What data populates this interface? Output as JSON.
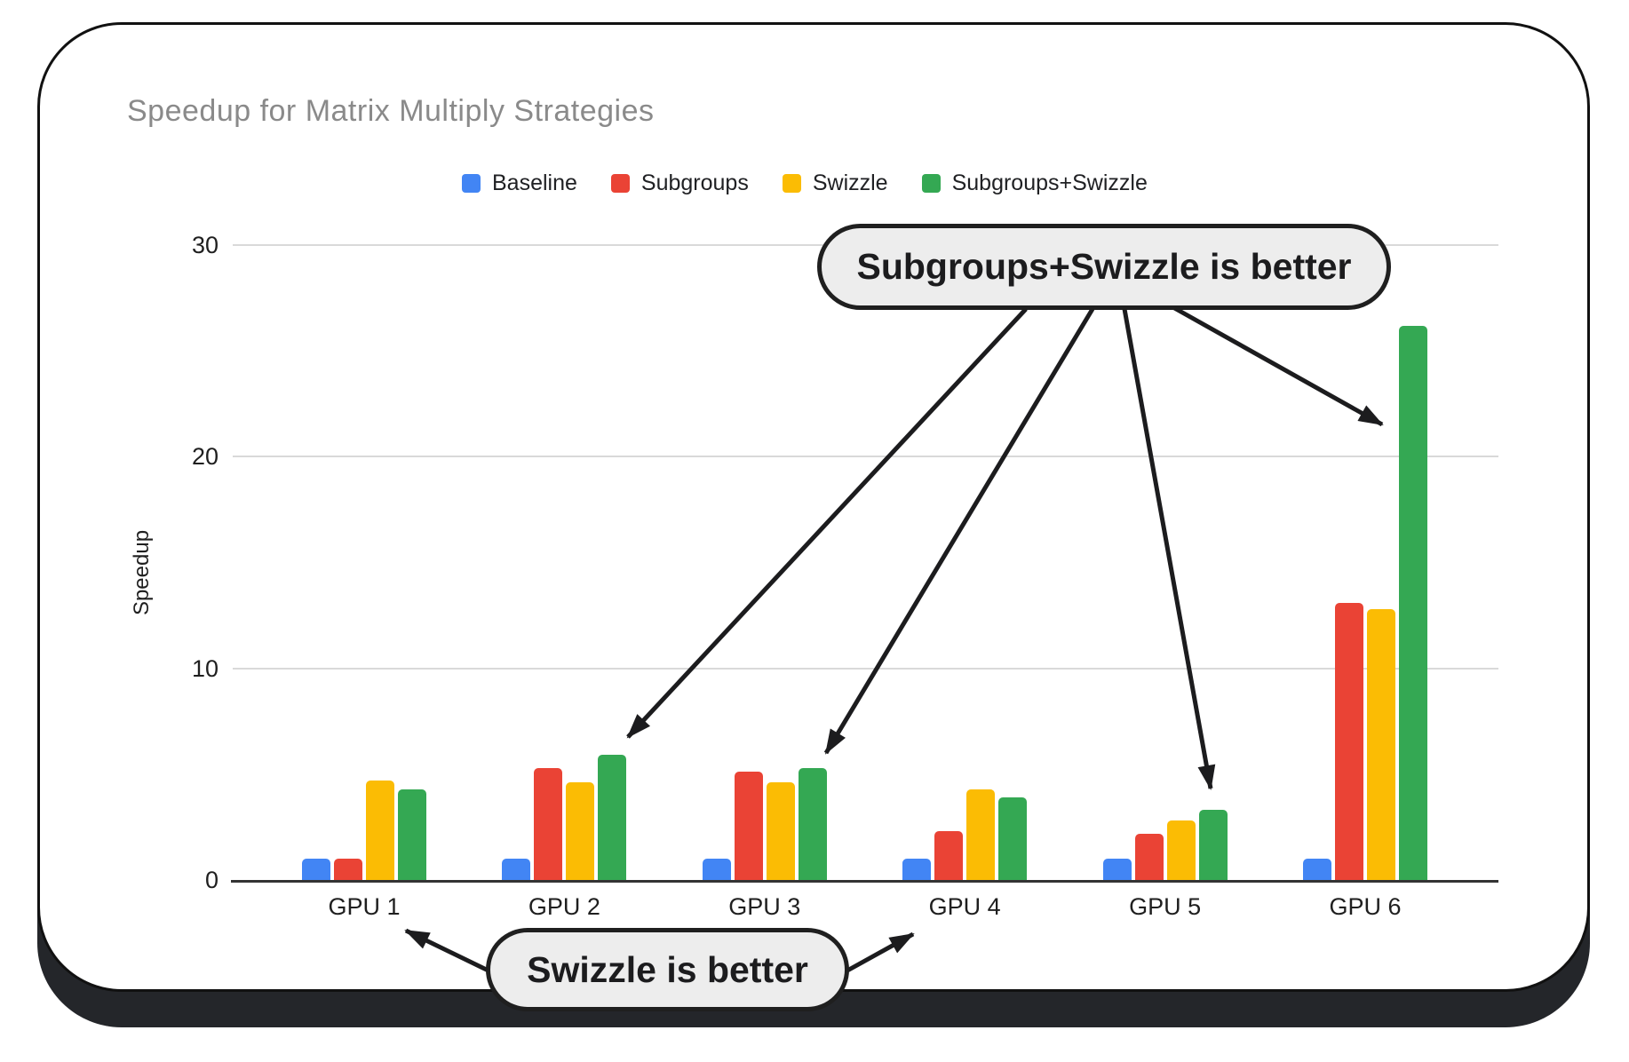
{
  "chart_data": {
    "type": "bar",
    "title": "Speedup for Matrix Multiply Strategies",
    "categories": [
      "GPU 1",
      "GPU 2",
      "GPU 3",
      "GPU 4",
      "GPU 5",
      "GPU 6"
    ],
    "series": [
      {
        "name": "Baseline",
        "color": "#4285F4",
        "values": [
          1.0,
          1.0,
          1.0,
          1.0,
          1.0,
          1.0
        ]
      },
      {
        "name": "Subgroups",
        "color": "#EA4335",
        "values": [
          1.0,
          5.3,
          5.1,
          2.3,
          2.2,
          13.1
        ]
      },
      {
        "name": "Swizzle",
        "color": "#FBBC04",
        "values": [
          4.7,
          4.6,
          4.6,
          4.3,
          2.8,
          12.8
        ]
      },
      {
        "name": "Subgroups+Swizzle",
        "color": "#34A853",
        "values": [
          4.3,
          5.9,
          5.3,
          3.9,
          3.3,
          26.2
        ]
      }
    ],
    "xlabel": "",
    "ylabel": "Speedup",
    "ylim": [
      0,
      30
    ],
    "yticks": [
      0,
      10,
      20,
      30
    ],
    "grid": true,
    "legend_position": "top"
  },
  "annotations": {
    "top": {
      "text": "Subgroups+Swizzle is better",
      "points_to": [
        "GPU 2",
        "GPU 3",
        "GPU 5",
        "GPU 6"
      ]
    },
    "bottom": {
      "text": "Swizzle is better",
      "points_to": [
        "GPU 1",
        "GPU 4"
      ]
    }
  },
  "colors": {
    "card_border": "#111111",
    "card_shadow": "#24262a",
    "bubble_fill": "#ededed",
    "bubble_border": "#1f1f1f",
    "gridline": "#d9d9d9",
    "axis_line": "#333333",
    "title_text": "#8a8a8a",
    "tick_text": "#1f1f1f",
    "arrow": "#1c1c1e"
  }
}
